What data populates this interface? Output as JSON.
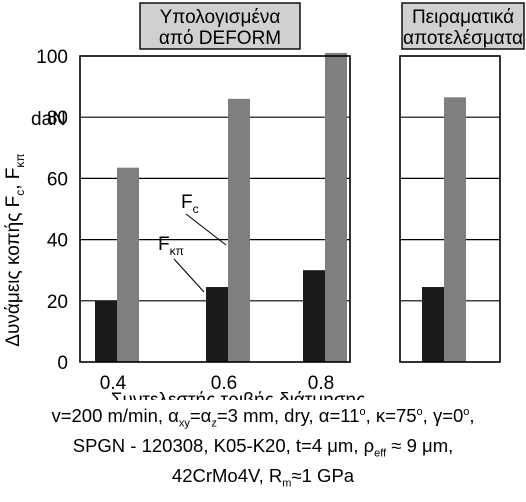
{
  "chart_data": {
    "type": "bar",
    "ylabel": "Δυνάμεις κοπής F",
    "ylabel_sub_c": "c",
    "ylabel_sep": ", F",
    "ylabel_sub_kp": "κπ",
    "y_unit": "daN",
    "xlabel": "Συντελεστής τριβής διάτμησης",
    "ylim": [
      0,
      100
    ],
    "yticks": [
      "0",
      "20",
      "40",
      "60",
      "80",
      "100"
    ],
    "categories": [
      "0.4",
      "0.6",
      "0.8"
    ],
    "series": [
      {
        "name": "F",
        "name_sub": "κπ",
        "color": "#1a1a1a",
        "values": [
          20,
          24.5,
          30
        ]
      },
      {
        "name": "F",
        "name_sub": "c",
        "color": "#7f7f7f",
        "values": [
          63.5,
          86,
          101
        ]
      }
    ],
    "experimental": {
      "values": [
        24.5,
        86.5
      ]
    },
    "panel_titles": {
      "computed": [
        "Υπολογισμένα",
        "από DEFORM"
      ],
      "experimental": [
        "Πειραματικά",
        "αποτελέσματα"
      ]
    },
    "panel_title_bg": "#d0d0d0",
    "grid": "horizontal"
  },
  "caption": {
    "line1": {
      "a": "v=200 m/min, α",
      "a_sub": "xy",
      "b": "=α",
      "b_sub": "z",
      "c": "=3 mm, dry, α=11",
      "c_sup": "o",
      "d": ", κ=75",
      "d_sup": "o",
      "e": ", γ=0",
      "e_sup": "o",
      "f": ","
    },
    "line2": {
      "a": "SPGN - 120308, K05-K20, t=4 μm, ρ",
      "a_sub": "eff",
      "b": " ≈ 9 μm,"
    },
    "line3": {
      "a": "42CrMo4V, R",
      "a_sub": "m",
      "b": "≈1 GPa"
    }
  }
}
